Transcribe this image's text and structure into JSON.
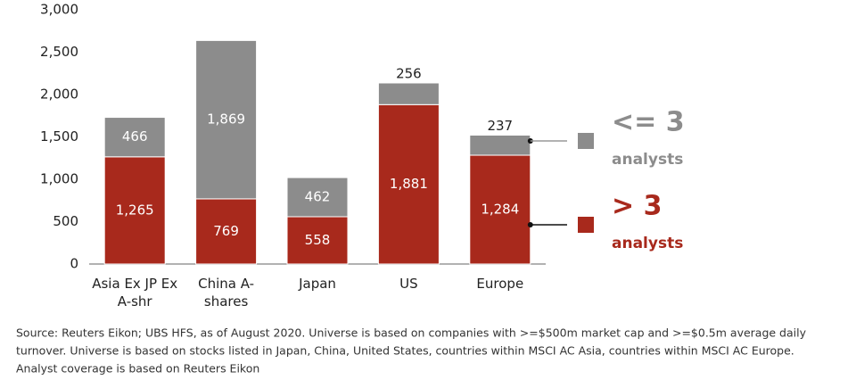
{
  "chart_data": {
    "type": "stacked-bar",
    "categories": [
      [
        "Asia Ex JP Ex",
        "A-shr"
      ],
      [
        "China A-",
        "shares"
      ],
      [
        "Japan"
      ],
      [
        "US"
      ],
      [
        "Europe"
      ]
    ],
    "series": [
      {
        "name": [
          "> 3",
          "analysts"
        ],
        "color": "#a8291c",
        "values": [
          1265,
          769,
          558,
          1881,
          1284
        ],
        "value_labels": [
          "1,265",
          "769",
          "558",
          "1,881",
          "1,284"
        ]
      },
      {
        "name": [
          "<= 3",
          "analysts"
        ],
        "color": "#8c8c8c",
        "values": [
          466,
          1869,
          462,
          256,
          237
        ],
        "value_labels": [
          "466",
          "1,869",
          "462",
          "256",
          "237"
        ]
      }
    ],
    "ylim": [
      0,
      3000
    ],
    "yticks": [
      0,
      500,
      {
        "value": 1000,
        "label": "1,000"
      },
      {
        "value": 1500,
        "label": "1,500"
      },
      {
        "value": 2000,
        "label": "2,000"
      },
      {
        "value": 2500,
        "label": "2,500"
      },
      {
        "value": 3000,
        "label": "3,000"
      }
    ],
    "grid": false,
    "source": [
      "Source: Reuters Eikon; UBS HFS, as of August 2020. Universe is based on companies with >=$500m market cap and >=$0.5m average daily",
      "turnover. Universe is based on stocks listed in Japan, China, United States, countries within MSCI AC Asia, countries within   MSCI AC Europe.",
      "Analyst coverage is based on Reuters Eikon"
    ]
  }
}
